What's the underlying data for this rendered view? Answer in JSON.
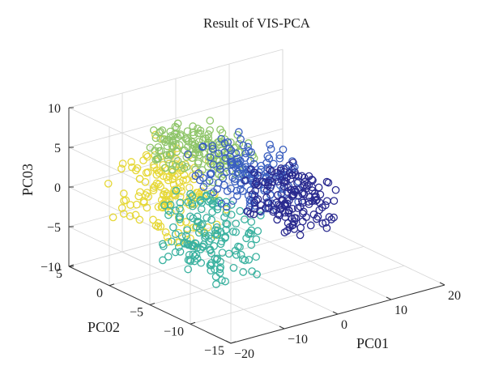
{
  "chart_data": {
    "type": "scatter",
    "dimensions": 3,
    "title": "Result of VIS-PCA",
    "xlabel": "PC01",
    "ylabel": "PC02",
    "zlabel": "PC03",
    "xlim": [
      -20,
      20
    ],
    "ylim": [
      -15,
      5
    ],
    "zlim": [
      -10,
      10
    ],
    "xticks": [
      "−20",
      "−10",
      "0",
      "10",
      "20"
    ],
    "yticks": [
      "−15",
      "−10",
      "−5",
      "0",
      "5"
    ],
    "zticks": [
      "−10",
      "−5",
      "0",
      "5",
      "10"
    ],
    "grid": true,
    "marker": "open circle",
    "colormap": [
      "#2a2a8f",
      "#3a5fc0",
      "#2c93c6",
      "#3bb2a0",
      "#8fc56a",
      "#e6d838"
    ],
    "clusters": [
      {
        "pc01": [
          -15,
          -5
        ],
        "pc02": [
          -5,
          4
        ],
        "pc03": [
          -5,
          5
        ],
        "color": "#e6d838"
      },
      {
        "pc01": [
          -12,
          -3
        ],
        "pc02": [
          -8,
          0
        ],
        "pc03": [
          -8,
          0
        ],
        "color": "#3bb2a0"
      },
      {
        "pc01": [
          -8,
          2
        ],
        "pc02": [
          -4,
          4
        ],
        "pc03": [
          2,
          6
        ],
        "color": "#8fc56a"
      },
      {
        "pc01": [
          -3,
          8
        ],
        "pc02": [
          -6,
          2
        ],
        "pc03": [
          -2,
          4
        ],
        "color": "#3a5fc0"
      },
      {
        "pc01": [
          5,
          14
        ],
        "pc02": [
          -6,
          0
        ],
        "pc03": [
          -6,
          0
        ],
        "color": "#2a2a8f"
      }
    ],
    "outliers": [
      {
        "pc01": 17,
        "pc02": -3,
        "pc03": -7,
        "color": "#2a2a8f"
      }
    ]
  }
}
